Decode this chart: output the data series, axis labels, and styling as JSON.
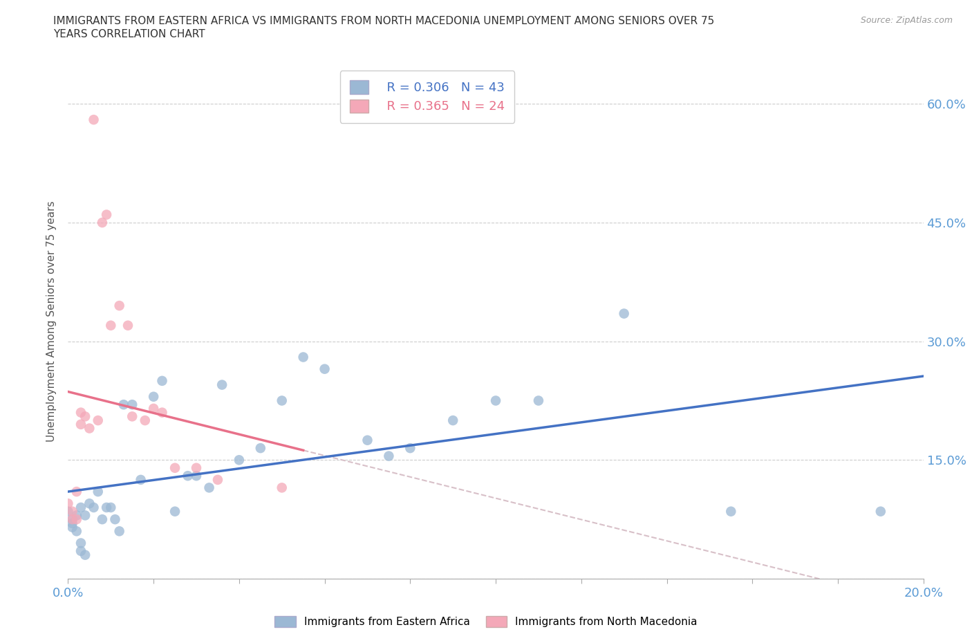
{
  "title_line1": "IMMIGRANTS FROM EASTERN AFRICA VS IMMIGRANTS FROM NORTH MACEDONIA UNEMPLOYMENT AMONG SENIORS OVER 75",
  "title_line2": "YEARS CORRELATION CHART",
  "source": "Source: ZipAtlas.com",
  "ylabel": "Unemployment Among Seniors over 75 years",
  "xlim": [
    0.0,
    0.2
  ],
  "ylim": [
    0.0,
    0.65
  ],
  "xticks": [
    0.0,
    0.02,
    0.04,
    0.06,
    0.08,
    0.1,
    0.12,
    0.14,
    0.16,
    0.18,
    0.2
  ],
  "yticks": [
    0.0,
    0.15,
    0.3,
    0.45,
    0.6
  ],
  "blue_R": 0.306,
  "blue_N": 43,
  "pink_R": 0.365,
  "pink_N": 24,
  "blue_color": "#9BB8D4",
  "pink_color": "#F4A8B8",
  "blue_line_color": "#4472C4",
  "pink_line_color": "#E8718A",
  "dashed_line_color": "#D8C0C8",
  "background_color": "#FFFFFF",
  "grid_color": "#CCCCCC",
  "right_axis_color": "#5B9BD5",
  "bottom_label_color": "#5B9BD5",
  "blue_scatter_x": [
    0.0,
    0.001,
    0.001,
    0.001,
    0.002,
    0.002,
    0.003,
    0.003,
    0.003,
    0.004,
    0.004,
    0.005,
    0.006,
    0.007,
    0.008,
    0.009,
    0.01,
    0.011,
    0.012,
    0.013,
    0.015,
    0.017,
    0.02,
    0.022,
    0.025,
    0.028,
    0.03,
    0.033,
    0.036,
    0.04,
    0.045,
    0.05,
    0.055,
    0.06,
    0.07,
    0.075,
    0.08,
    0.09,
    0.1,
    0.11,
    0.13,
    0.155,
    0.19
  ],
  "blue_scatter_y": [
    0.085,
    0.075,
    0.07,
    0.065,
    0.08,
    0.06,
    0.09,
    0.045,
    0.035,
    0.08,
    0.03,
    0.095,
    0.09,
    0.11,
    0.075,
    0.09,
    0.09,
    0.075,
    0.06,
    0.22,
    0.22,
    0.125,
    0.23,
    0.25,
    0.085,
    0.13,
    0.13,
    0.115,
    0.245,
    0.15,
    0.165,
    0.225,
    0.28,
    0.265,
    0.175,
    0.155,
    0.165,
    0.2,
    0.225,
    0.225,
    0.335,
    0.085,
    0.085
  ],
  "pink_scatter_x": [
    0.0,
    0.001,
    0.001,
    0.002,
    0.002,
    0.003,
    0.003,
    0.004,
    0.005,
    0.006,
    0.007,
    0.008,
    0.009,
    0.01,
    0.012,
    0.014,
    0.015,
    0.018,
    0.02,
    0.022,
    0.025,
    0.03,
    0.035,
    0.05
  ],
  "pink_scatter_y": [
    0.095,
    0.075,
    0.085,
    0.075,
    0.11,
    0.195,
    0.21,
    0.205,
    0.19,
    0.58,
    0.2,
    0.45,
    0.46,
    0.32,
    0.345,
    0.32,
    0.205,
    0.2,
    0.215,
    0.21,
    0.14,
    0.14,
    0.125,
    0.115
  ]
}
